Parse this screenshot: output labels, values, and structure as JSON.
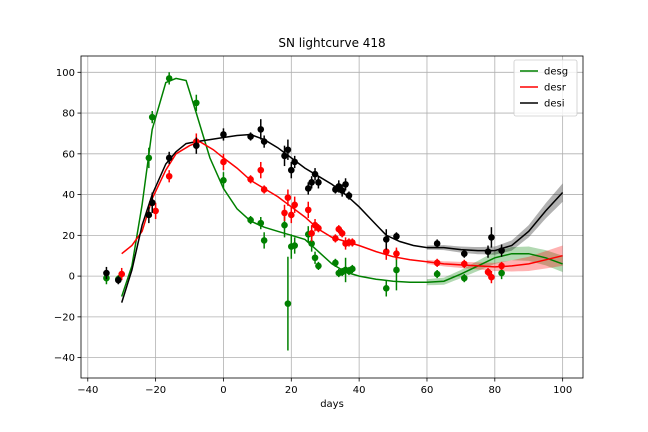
{
  "chart_data": {
    "type": "scatter",
    "title": "SN lightcurve 418",
    "xlabel": "days",
    "ylabel": "",
    "xlim": [
      -42,
      106
    ],
    "ylim": [
      -50,
      108
    ],
    "xticks": [
      -40,
      -20,
      0,
      20,
      40,
      60,
      80,
      100
    ],
    "yticks": [
      -40,
      -20,
      0,
      20,
      40,
      60,
      80,
      100
    ],
    "grid": true,
    "legend_position": "top-right",
    "series": [
      {
        "name": "desg",
        "color": "#008000",
        "points": [
          [
            -34.5,
            -1,
            3
          ],
          [
            -31,
            -1.5,
            2
          ],
          [
            -22,
            58,
            5
          ],
          [
            -21,
            78,
            3
          ],
          [
            -16,
            97,
            3
          ],
          [
            -8,
            85,
            4
          ],
          [
            0,
            47,
            4
          ],
          [
            8,
            27.5,
            2
          ],
          [
            11,
            26,
            3
          ],
          [
            12,
            17.5,
            4
          ],
          [
            18,
            25,
            6
          ],
          [
            19,
            -13.5,
            23
          ],
          [
            20,
            14.5,
            6
          ],
          [
            21,
            15,
            4
          ],
          [
            25,
            20.5,
            4
          ],
          [
            26,
            16,
            4
          ],
          [
            27,
            9,
            3
          ],
          [
            28,
            5,
            2
          ],
          [
            33,
            6.5,
            2
          ],
          [
            34,
            1.5,
            2
          ],
          [
            35,
            2,
            2
          ],
          [
            36,
            3,
            6
          ],
          [
            37,
            2.5,
            2
          ],
          [
            38,
            3.5,
            2
          ],
          [
            48,
            -6,
            4
          ],
          [
            51,
            3,
            10
          ],
          [
            63,
            1,
            2
          ],
          [
            71,
            -1,
            2
          ],
          [
            82,
            1.5,
            3
          ]
        ],
        "model": [
          [
            -30,
            -10
          ],
          [
            -27,
            5
          ],
          [
            -24,
            35
          ],
          [
            -21,
            72
          ],
          [
            -17,
            95
          ],
          [
            -14,
            97
          ],
          [
            -11,
            96
          ],
          [
            -8,
            80
          ],
          [
            -4,
            58
          ],
          [
            0,
            43
          ],
          [
            4,
            33
          ],
          [
            8,
            27
          ],
          [
            12,
            24
          ],
          [
            16,
            22
          ],
          [
            20,
            20
          ],
          [
            24,
            18
          ],
          [
            28,
            12
          ],
          [
            32,
            6
          ],
          [
            36,
            2
          ],
          [
            40,
            0
          ],
          [
            45,
            -1.5
          ],
          [
            50,
            -2.5
          ],
          [
            55,
            -3
          ],
          [
            60,
            -3
          ],
          [
            65,
            -2.5
          ],
          [
            70,
            1
          ],
          [
            75,
            5
          ],
          [
            80,
            9
          ],
          [
            85,
            11
          ],
          [
            90,
            11
          ],
          [
            95,
            9
          ],
          [
            100,
            6
          ]
        ],
        "band_halfwidth": [
          [
            60,
            1.5
          ],
          [
            70,
            2
          ],
          [
            80,
            3
          ],
          [
            90,
            3.5
          ],
          [
            100,
            4
          ]
        ]
      },
      {
        "name": "desr",
        "color": "#ff0000",
        "points": [
          [
            -30,
            1,
            3
          ],
          [
            -21,
            36,
            4
          ],
          [
            -20,
            32,
            4
          ],
          [
            -16,
            49,
            3
          ],
          [
            -8,
            66,
            4
          ],
          [
            0,
            56,
            4
          ],
          [
            8,
            47.5,
            2
          ],
          [
            11,
            52,
            4
          ],
          [
            12,
            42.5,
            2
          ],
          [
            18,
            31,
            4
          ],
          [
            19,
            38.5,
            4
          ],
          [
            20,
            30,
            4
          ],
          [
            21,
            35,
            4
          ],
          [
            25,
            32.5,
            4
          ],
          [
            26,
            21,
            4
          ],
          [
            27,
            25,
            3
          ],
          [
            28,
            23.5,
            2
          ],
          [
            33,
            18.5,
            2
          ],
          [
            34,
            23,
            2
          ],
          [
            35,
            21,
            2
          ],
          [
            36,
            16,
            3
          ],
          [
            37,
            16.5,
            2
          ],
          [
            38,
            16.5,
            2
          ],
          [
            48,
            12,
            4
          ],
          [
            51,
            11,
            3
          ],
          [
            63,
            6.5,
            2
          ],
          [
            71,
            6,
            2
          ],
          [
            78,
            2,
            2
          ],
          [
            79,
            -0.5,
            3
          ],
          [
            82,
            5,
            2
          ]
        ],
        "model": [
          [
            -30,
            11
          ],
          [
            -27,
            15
          ],
          [
            -24,
            22
          ],
          [
            -21,
            38
          ],
          [
            -17,
            52
          ],
          [
            -14,
            60
          ],
          [
            -10,
            64
          ],
          [
            -7,
            66
          ],
          [
            -3,
            62
          ],
          [
            0,
            58
          ],
          [
            4,
            53
          ],
          [
            8,
            47
          ],
          [
            12,
            43
          ],
          [
            16,
            39
          ],
          [
            20,
            34
          ],
          [
            24,
            29
          ],
          [
            28,
            23
          ],
          [
            32,
            19
          ],
          [
            36,
            17
          ],
          [
            40,
            15
          ],
          [
            45,
            12
          ],
          [
            50,
            9.5
          ],
          [
            55,
            8
          ],
          [
            60,
            7
          ],
          [
            65,
            6
          ],
          [
            70,
            5.5
          ],
          [
            75,
            5
          ],
          [
            80,
            4.5
          ],
          [
            85,
            5
          ],
          [
            90,
            6
          ],
          [
            95,
            8
          ],
          [
            100,
            10
          ]
        ],
        "band_halfwidth": [
          [
            60,
            1
          ],
          [
            70,
            1.5
          ],
          [
            80,
            2
          ],
          [
            90,
            3.5
          ],
          [
            100,
            5
          ]
        ]
      },
      {
        "name": "desi",
        "color": "#000000",
        "points": [
          [
            -34.5,
            1.5,
            3
          ],
          [
            -31,
            -2,
            2
          ],
          [
            -22,
            30,
            4
          ],
          [
            -21,
            36,
            5
          ],
          [
            -16,
            58,
            3
          ],
          [
            -8,
            64,
            4
          ],
          [
            0,
            69.5,
            3
          ],
          [
            8,
            68.5,
            2
          ],
          [
            11,
            72,
            5
          ],
          [
            12,
            66,
            3
          ],
          [
            18,
            59,
            5
          ],
          [
            19,
            62,
            5
          ],
          [
            20,
            52,
            4
          ],
          [
            21,
            56,
            3
          ],
          [
            25,
            43,
            3
          ],
          [
            26,
            46,
            3
          ],
          [
            27,
            50,
            3
          ],
          [
            28,
            46,
            3
          ],
          [
            33,
            42.5,
            2
          ],
          [
            34,
            44,
            3
          ],
          [
            35,
            42,
            3
          ],
          [
            36,
            45,
            3
          ],
          [
            37,
            39.5,
            2
          ],
          [
            48,
            18,
            5
          ],
          [
            51,
            19.5,
            2
          ],
          [
            63,
            16,
            2
          ],
          [
            71,
            11,
            2
          ],
          [
            78,
            12,
            3
          ],
          [
            79,
            19,
            5
          ],
          [
            82,
            12.5,
            3
          ]
        ],
        "model": [
          [
            -30,
            -13
          ],
          [
            -27,
            3
          ],
          [
            -24,
            25
          ],
          [
            -21,
            40
          ],
          [
            -17,
            55
          ],
          [
            -14,
            61
          ],
          [
            -11,
            65
          ],
          [
            -8,
            66
          ],
          [
            -4,
            67
          ],
          [
            0,
            68
          ],
          [
            4,
            69
          ],
          [
            8,
            69.5
          ],
          [
            12,
            67
          ],
          [
            16,
            63
          ],
          [
            20,
            58
          ],
          [
            24,
            53
          ],
          [
            28,
            49
          ],
          [
            32,
            45
          ],
          [
            36,
            40
          ],
          [
            40,
            34
          ],
          [
            44,
            27
          ],
          [
            48,
            20
          ],
          [
            52,
            17
          ],
          [
            56,
            15
          ],
          [
            60,
            14
          ],
          [
            65,
            14
          ],
          [
            70,
            13
          ],
          [
            75,
            12.5
          ],
          [
            80,
            12.5
          ],
          [
            85,
            15
          ],
          [
            90,
            22
          ],
          [
            95,
            32
          ],
          [
            100,
            41
          ]
        ],
        "band_halfwidth": [
          [
            60,
            1
          ],
          [
            70,
            1.5
          ],
          [
            80,
            2
          ],
          [
            90,
            3
          ],
          [
            100,
            4.5
          ]
        ]
      }
    ]
  }
}
